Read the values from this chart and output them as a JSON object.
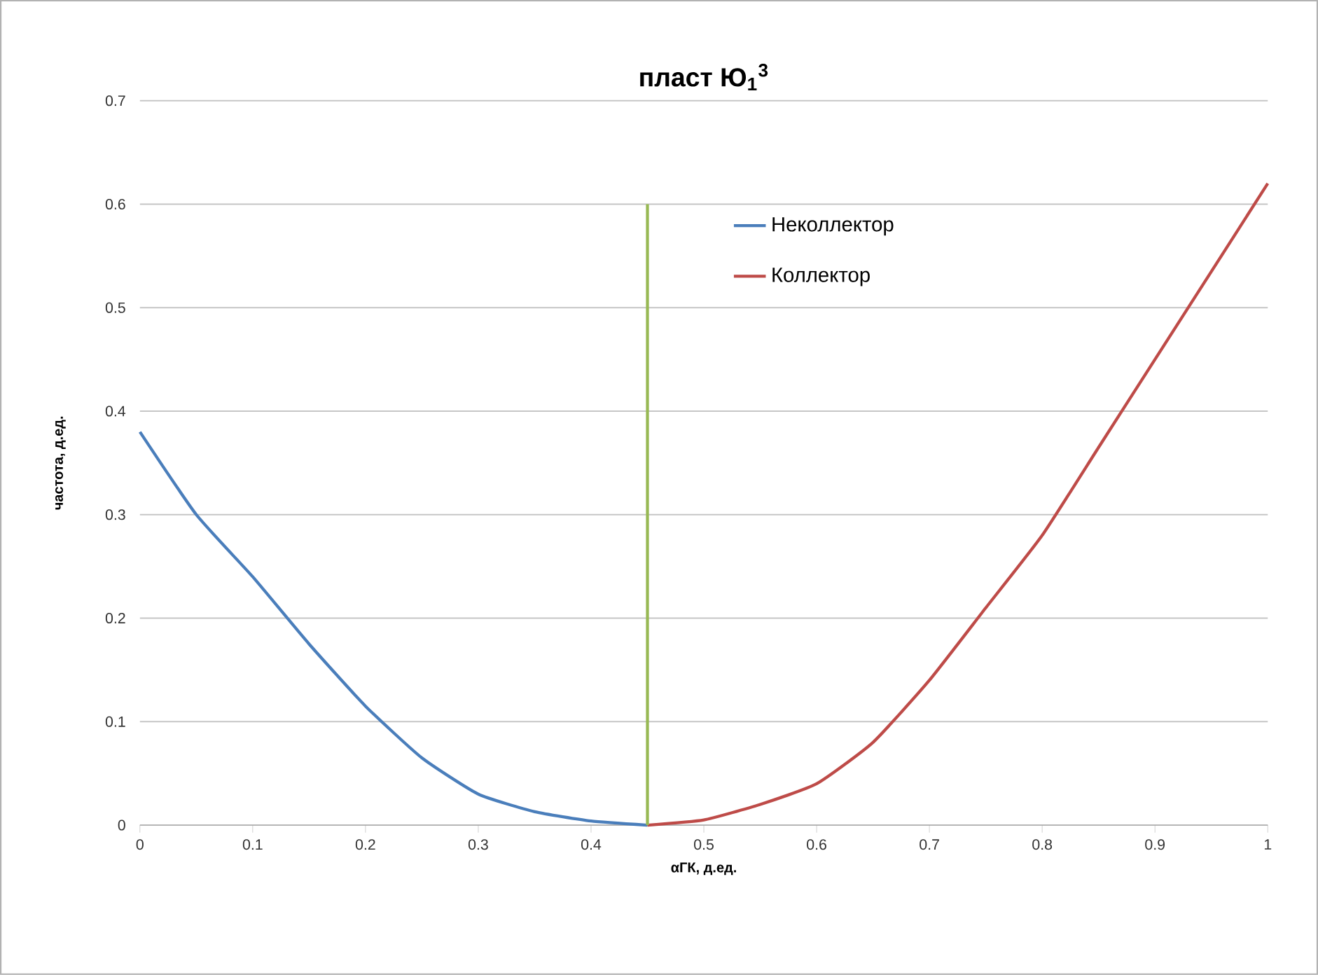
{
  "chart_data": {
    "type": "line",
    "title": "пласт Ю$_{1}$$^{3}$",
    "xlabel": "αГК, д.ед.",
    "ylabel": "частота, д.ед.",
    "series": [
      {
        "name": "Неколлектор",
        "color": "#4a7ebb",
        "x": [
          0,
          0.05,
          0.1,
          0.15,
          0.2,
          0.25,
          0.3,
          0.35,
          0.4,
          0.45
        ],
        "values": [
          0.38,
          0.3,
          0.24,
          0.175,
          0.115,
          0.065,
          0.03,
          0.013,
          0.004,
          0
        ]
      },
      {
        "name": "Коллектор",
        "color": "#be4b48",
        "x": [
          0.45,
          0.5,
          0.55,
          0.6,
          0.65,
          0.7,
          0.75,
          0.8,
          0.85,
          0.9,
          0.95,
          1
        ],
        "values": [
          0,
          0.005,
          0.02,
          0.04,
          0.08,
          0.14,
          0.21,
          0.28,
          0.365,
          0.45,
          0.535,
          0.62
        ]
      },
      {
        "color": "#98b954",
        "x": [
          0.45,
          0.45
        ],
        "values": [
          0,
          0.6
        ]
      }
    ],
    "xlim": [
      0,
      1
    ],
    "ylim": [
      0,
      0.7
    ],
    "xticks": [
      0,
      0.1,
      0.2,
      0.3,
      0.4,
      0.5,
      0.6,
      0.7,
      0.8,
      0.9,
      1
    ],
    "yticks": [
      0,
      0.1,
      0.2,
      0.3,
      0.4,
      0.5,
      0.6,
      0.7
    ],
    "grid": "y",
    "legend": "top right",
    "marker": "none",
    "line_style": "solid"
  }
}
